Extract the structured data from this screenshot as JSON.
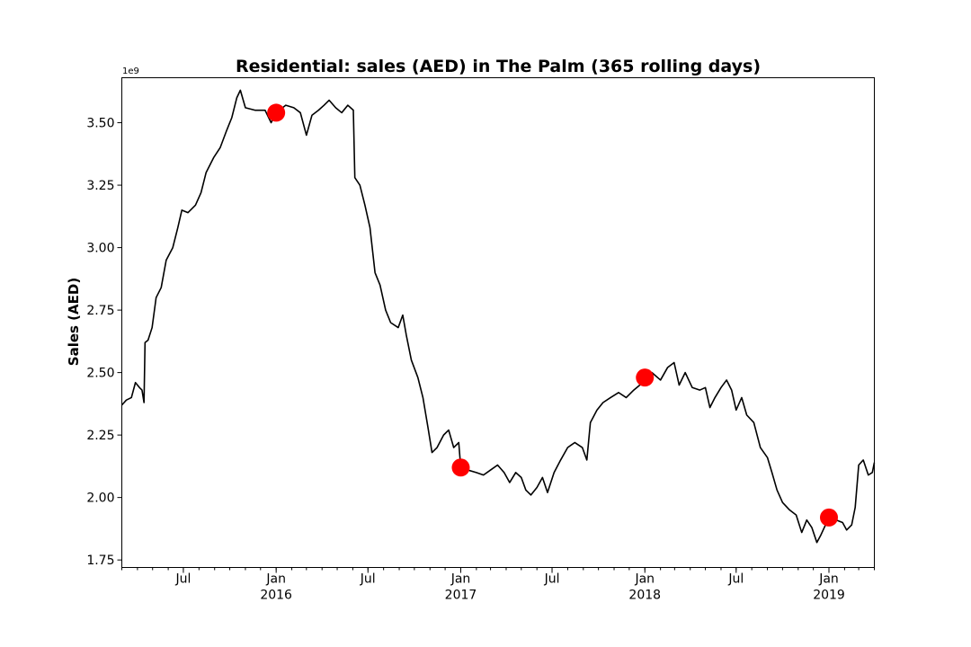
{
  "chart_data": {
    "type": "line",
    "title": "Residential: sales (AED) in The Palm (365 rolling days)",
    "xlabel": "",
    "ylabel": "Sales (AED)",
    "y_offset_label": "1e9",
    "xlim": [
      "2015-03-01",
      "2019-04-01"
    ],
    "ylim": [
      1.72,
      3.68
    ],
    "y_ticks": [
      1.75,
      2.0,
      2.25,
      2.5,
      2.75,
      3.0,
      3.25,
      3.5
    ],
    "y_tick_labels": [
      "1.75",
      "2.00",
      "2.25",
      "2.50",
      "2.75",
      "3.00",
      "3.25",
      "3.50"
    ],
    "x_ticks": [
      {
        "date": "2015-07-01",
        "label": "Jul",
        "year": ""
      },
      {
        "date": "2016-01-01",
        "label": "Jan",
        "year": "2016"
      },
      {
        "date": "2016-07-01",
        "label": "Jul",
        "year": ""
      },
      {
        "date": "2017-01-01",
        "label": "Jan",
        "year": "2017"
      },
      {
        "date": "2017-07-01",
        "label": "Jul",
        "year": ""
      },
      {
        "date": "2018-01-01",
        "label": "Jan",
        "year": "2018"
      },
      {
        "date": "2018-07-01",
        "label": "Jul",
        "year": ""
      },
      {
        "date": "2019-01-01",
        "label": "Jan",
        "year": "2019"
      }
    ],
    "grid": false,
    "line_color": "#000000",
    "marker_color": "#ff0000",
    "series": [
      {
        "values": [
          [
            "2015-03-01",
            2.37
          ],
          [
            "2015-03-10",
            2.39
          ],
          [
            "2015-03-20",
            2.4
          ],
          [
            "2015-03-28",
            2.46
          ],
          [
            "2015-04-05",
            2.44
          ],
          [
            "2015-04-10",
            2.43
          ],
          [
            "2015-04-14",
            2.38
          ],
          [
            "2015-04-16",
            2.62
          ],
          [
            "2015-04-22",
            2.63
          ],
          [
            "2015-04-30",
            2.68
          ],
          [
            "2015-05-08",
            2.8
          ],
          [
            "2015-05-18",
            2.84
          ],
          [
            "2015-05-28",
            2.95
          ],
          [
            "2015-06-10",
            3.0
          ],
          [
            "2015-06-20",
            3.08
          ],
          [
            "2015-06-28",
            3.15
          ],
          [
            "2015-07-10",
            3.14
          ],
          [
            "2015-07-25",
            3.17
          ],
          [
            "2015-08-05",
            3.22
          ],
          [
            "2015-08-15",
            3.3
          ],
          [
            "2015-08-30",
            3.36
          ],
          [
            "2015-09-12",
            3.4
          ],
          [
            "2015-09-25",
            3.47
          ],
          [
            "2015-10-05",
            3.52
          ],
          [
            "2015-10-15",
            3.6
          ],
          [
            "2015-10-22",
            3.63
          ],
          [
            "2015-11-01",
            3.56
          ],
          [
            "2015-11-20",
            3.55
          ],
          [
            "2015-12-10",
            3.55
          ],
          [
            "2015-12-22",
            3.5
          ],
          [
            "2016-01-01",
            3.54
          ],
          [
            "2016-01-20",
            3.57
          ],
          [
            "2016-02-05",
            3.56
          ],
          [
            "2016-02-18",
            3.54
          ],
          [
            "2016-03-01",
            3.45
          ],
          [
            "2016-03-12",
            3.53
          ],
          [
            "2016-03-25",
            3.55
          ],
          [
            "2016-04-05",
            3.57
          ],
          [
            "2016-04-15",
            3.59
          ],
          [
            "2016-04-28",
            3.56
          ],
          [
            "2016-05-10",
            3.54
          ],
          [
            "2016-05-22",
            3.57
          ],
          [
            "2016-06-02",
            3.55
          ],
          [
            "2016-06-05",
            3.28
          ],
          [
            "2016-06-15",
            3.25
          ],
          [
            "2016-06-25",
            3.17
          ],
          [
            "2016-07-05",
            3.08
          ],
          [
            "2016-07-15",
            2.9
          ],
          [
            "2016-07-25",
            2.85
          ],
          [
            "2016-08-05",
            2.75
          ],
          [
            "2016-08-15",
            2.7
          ],
          [
            "2016-08-30",
            2.68
          ],
          [
            "2016-09-08",
            2.73
          ],
          [
            "2016-09-15",
            2.65
          ],
          [
            "2016-09-25",
            2.55
          ],
          [
            "2016-10-08",
            2.48
          ],
          [
            "2016-10-18",
            2.4
          ],
          [
            "2016-10-28",
            2.28
          ],
          [
            "2016-11-05",
            2.18
          ],
          [
            "2016-11-15",
            2.2
          ],
          [
            "2016-11-28",
            2.25
          ],
          [
            "2016-12-08",
            2.27
          ],
          [
            "2016-12-18",
            2.2
          ],
          [
            "2016-12-28",
            2.22
          ],
          [
            "2017-01-01",
            2.12
          ],
          [
            "2017-01-15",
            2.11
          ],
          [
            "2017-02-01",
            2.1
          ],
          [
            "2017-02-15",
            2.09
          ],
          [
            "2017-03-01",
            2.11
          ],
          [
            "2017-03-15",
            2.13
          ],
          [
            "2017-03-28",
            2.1
          ],
          [
            "2017-04-08",
            2.06
          ],
          [
            "2017-04-20",
            2.1
          ],
          [
            "2017-05-01",
            2.08
          ],
          [
            "2017-05-10",
            2.03
          ],
          [
            "2017-05-20",
            2.01
          ],
          [
            "2017-06-01",
            2.04
          ],
          [
            "2017-06-12",
            2.08
          ],
          [
            "2017-06-22",
            2.02
          ],
          [
            "2017-07-05",
            2.1
          ],
          [
            "2017-07-18",
            2.15
          ],
          [
            "2017-08-01",
            2.2
          ],
          [
            "2017-08-15",
            2.22
          ],
          [
            "2017-08-30",
            2.2
          ],
          [
            "2017-09-08",
            2.15
          ],
          [
            "2017-09-15",
            2.3
          ],
          [
            "2017-09-28",
            2.35
          ],
          [
            "2017-10-10",
            2.38
          ],
          [
            "2017-10-25",
            2.4
          ],
          [
            "2017-11-10",
            2.42
          ],
          [
            "2017-11-25",
            2.4
          ],
          [
            "2017-12-10",
            2.43
          ],
          [
            "2017-12-22",
            2.45
          ],
          [
            "2018-01-01",
            2.48
          ],
          [
            "2018-01-15",
            2.5
          ],
          [
            "2018-02-01",
            2.47
          ],
          [
            "2018-02-15",
            2.52
          ],
          [
            "2018-02-28",
            2.54
          ],
          [
            "2018-03-10",
            2.45
          ],
          [
            "2018-03-22",
            2.5
          ],
          [
            "2018-04-05",
            2.44
          ],
          [
            "2018-04-20",
            2.43
          ],
          [
            "2018-05-01",
            2.44
          ],
          [
            "2018-05-10",
            2.36
          ],
          [
            "2018-05-20",
            2.4
          ],
          [
            "2018-06-01",
            2.44
          ],
          [
            "2018-06-12",
            2.47
          ],
          [
            "2018-06-22",
            2.43
          ],
          [
            "2018-07-01",
            2.35
          ],
          [
            "2018-07-12",
            2.4
          ],
          [
            "2018-07-22",
            2.33
          ],
          [
            "2018-08-05",
            2.3
          ],
          [
            "2018-08-18",
            2.2
          ],
          [
            "2018-09-01",
            2.16
          ],
          [
            "2018-09-10",
            2.1
          ],
          [
            "2018-09-20",
            2.03
          ],
          [
            "2018-10-01",
            1.98
          ],
          [
            "2018-10-15",
            1.95
          ],
          [
            "2018-10-28",
            1.93
          ],
          [
            "2018-11-08",
            1.86
          ],
          [
            "2018-11-18",
            1.91
          ],
          [
            "2018-11-28",
            1.88
          ],
          [
            "2018-12-08",
            1.82
          ],
          [
            "2018-12-16",
            1.85
          ],
          [
            "2019-01-01",
            1.92
          ],
          [
            "2019-01-15",
            1.91
          ],
          [
            "2019-01-28",
            1.9
          ],
          [
            "2019-02-05",
            1.87
          ],
          [
            "2019-02-15",
            1.89
          ],
          [
            "2019-02-22",
            1.96
          ],
          [
            "2019-03-01",
            2.13
          ],
          [
            "2019-03-10",
            2.15
          ],
          [
            "2019-03-20",
            2.09
          ],
          [
            "2019-03-28",
            2.1
          ],
          [
            "2019-04-01",
            2.14
          ]
        ]
      }
    ],
    "highlight_points": [
      [
        "2016-01-01",
        3.54
      ],
      [
        "2017-01-01",
        2.12
      ],
      [
        "2018-01-01",
        2.48
      ],
      [
        "2019-01-01",
        1.92
      ]
    ]
  }
}
